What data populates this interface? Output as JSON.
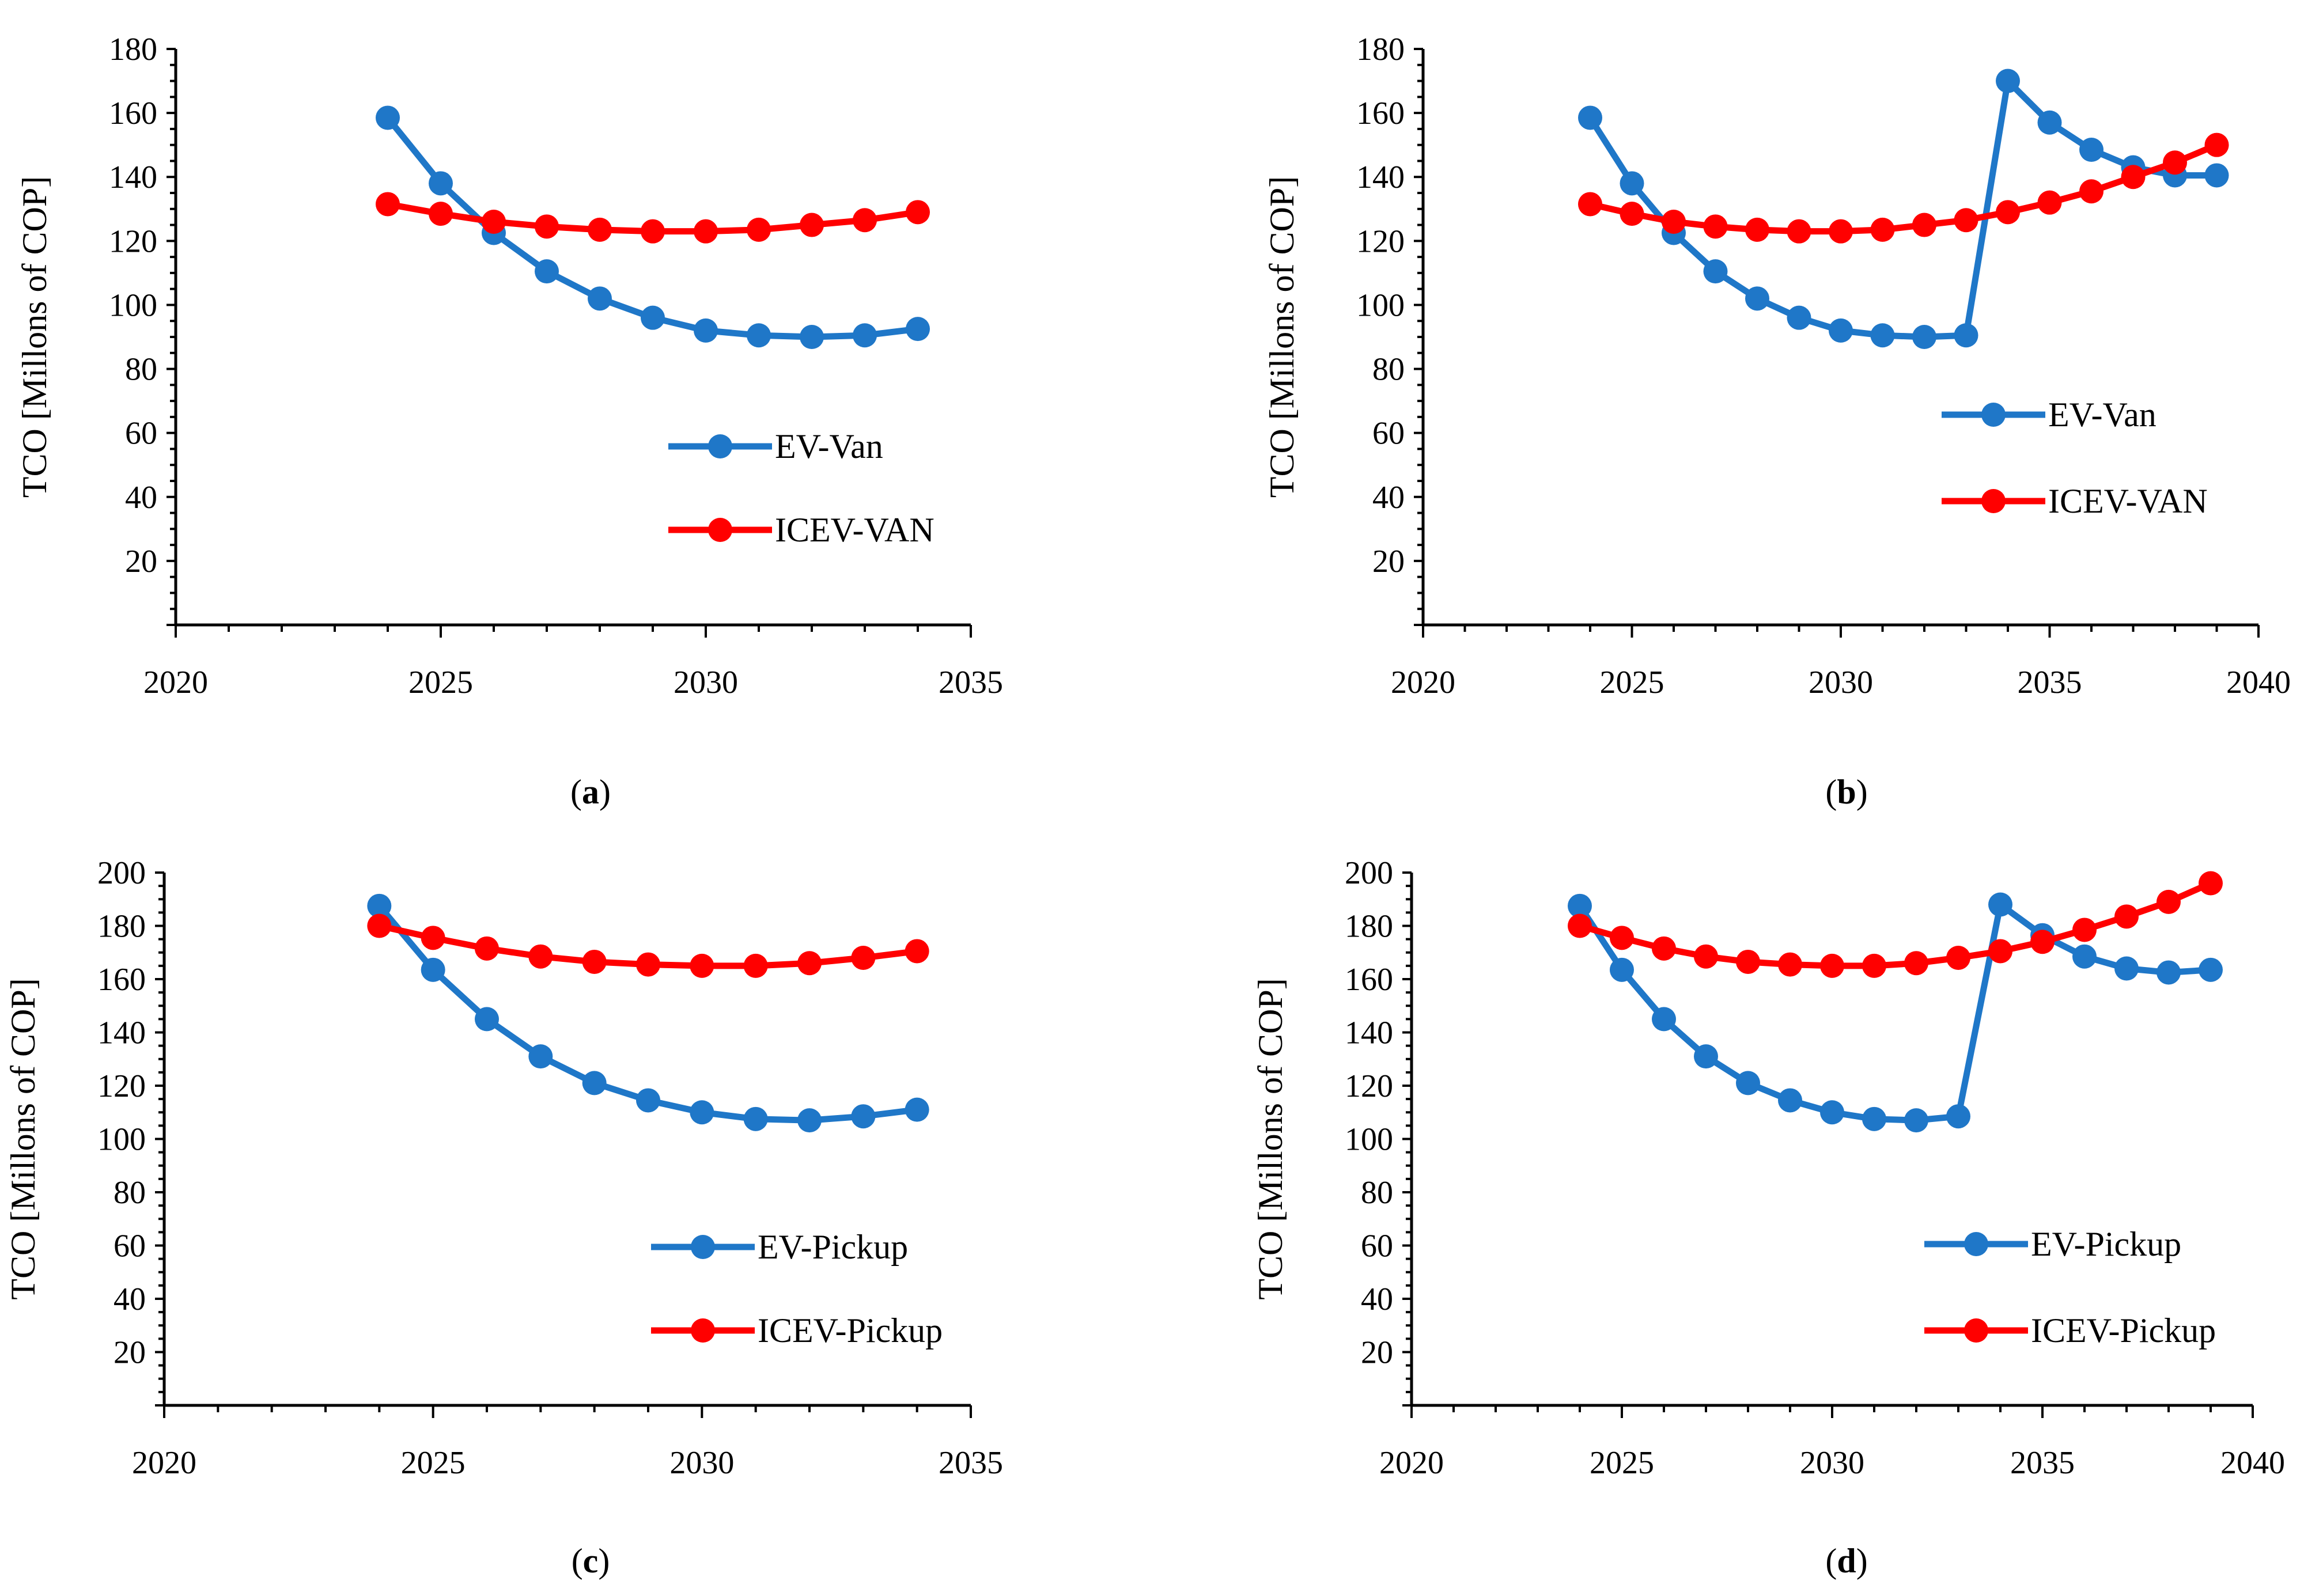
{
  "chart_data": [
    {
      "id": "a",
      "type": "line",
      "caption": "a",
      "title": "",
      "xlabel": "",
      "ylabel": "TCO [Millons of COP]",
      "xlim": [
        2020,
        2035
      ],
      "ylim": [
        0,
        180
      ],
      "xticks": [
        "2020",
        "2025",
        "2030",
        "2035"
      ],
      "yticks": [
        "20",
        "40",
        "60",
        "80",
        "100",
        "120",
        "140",
        "160",
        "180"
      ],
      "legend_position": "center-right",
      "x": [
        2024,
        2025,
        2026,
        2027,
        2028,
        2029,
        2030,
        2031,
        2032,
        2033,
        2034
      ],
      "series": [
        {
          "name": "EV-Van",
          "color": "#1f77c8",
          "values": [
            158.5,
            138,
            122.5,
            110.5,
            102,
            96,
            92,
            90.5,
            90,
            90.5,
            92.5
          ]
        },
        {
          "name": "ICEV-VAN",
          "color": "#ff0000",
          "values": [
            131.5,
            128.5,
            126,
            124.5,
            123.5,
            123,
            123,
            123.5,
            125,
            126.5,
            129
          ]
        }
      ]
    },
    {
      "id": "b",
      "type": "line",
      "caption": "b",
      "title": "",
      "xlabel": "",
      "ylabel": "TCO [Millons of COP]",
      "xlim": [
        2020,
        2040
      ],
      "ylim": [
        0,
        180
      ],
      "xticks": [
        "2020",
        "2025",
        "2030",
        "2035",
        "2040"
      ],
      "yticks": [
        "20",
        "40",
        "60",
        "80",
        "100",
        "120",
        "140",
        "160",
        "180"
      ],
      "legend_position": "center-right",
      "x": [
        2024,
        2025,
        2026,
        2027,
        2028,
        2029,
        2030,
        2031,
        2032,
        2033,
        2034,
        2035,
        2036,
        2037,
        2038,
        2039
      ],
      "series": [
        {
          "name": "EV-Van",
          "color": "#1f77c8",
          "values": [
            158.5,
            138,
            122.5,
            110.5,
            102,
            96,
            92,
            90.5,
            90,
            90.5,
            170,
            157,
            148.5,
            143,
            140.5,
            140.5
          ]
        },
        {
          "name": "ICEV-VAN",
          "color": "#ff0000",
          "values": [
            131.5,
            128.5,
            126,
            124.5,
            123.5,
            123,
            123,
            123.5,
            125,
            126.5,
            129,
            132,
            135.5,
            140,
            144.5,
            150
          ]
        }
      ]
    },
    {
      "id": "c",
      "type": "line",
      "caption": "c",
      "title": "",
      "xlabel": "",
      "ylabel": "TCO [Millons of COP]",
      "xlim": [
        2020,
        2035
      ],
      "ylim": [
        0,
        200
      ],
      "xticks": [
        "2020",
        "2025",
        "2030",
        "2035"
      ],
      "yticks": [
        "20",
        "40",
        "60",
        "80",
        "100",
        "120",
        "140",
        "160",
        "180",
        "200"
      ],
      "legend_position": "center-right",
      "x": [
        2024,
        2025,
        2026,
        2027,
        2028,
        2029,
        2030,
        2031,
        2032,
        2033,
        2034
      ],
      "series": [
        {
          "name": "EV-Pickup",
          "color": "#1f77c8",
          "values": [
            187.5,
            163.5,
            145,
            131,
            121,
            114.5,
            110,
            107.5,
            107,
            108.5,
            111
          ]
        },
        {
          "name": "ICEV-Pickup",
          "color": "#ff0000",
          "values": [
            180,
            175.5,
            171.5,
            168.5,
            166.5,
            165.5,
            165,
            165,
            166,
            168,
            170.5
          ]
        }
      ]
    },
    {
      "id": "d",
      "type": "line",
      "caption": "d",
      "title": "",
      "xlabel": "",
      "ylabel": "TCO [Millons of COP]",
      "xlim": [
        2020,
        2040
      ],
      "ylim": [
        0,
        200
      ],
      "xticks": [
        "2020",
        "2025",
        "2030",
        "2035",
        "2040"
      ],
      "yticks": [
        "20",
        "40",
        "60",
        "80",
        "100",
        "120",
        "140",
        "160",
        "180",
        "200"
      ],
      "legend_position": "center-right",
      "x": [
        2024,
        2025,
        2026,
        2027,
        2028,
        2029,
        2030,
        2031,
        2032,
        2033,
        2034,
        2035,
        2036,
        2037,
        2038,
        2039
      ],
      "series": [
        {
          "name": "EV-Pickup",
          "color": "#1f77c8",
          "values": [
            187.5,
            163.5,
            145,
            131,
            121,
            114.5,
            110,
            107.5,
            107,
            108.5,
            188,
            176.5,
            168.5,
            164,
            162.5,
            163.5
          ]
        },
        {
          "name": "ICEV-Pickup",
          "color": "#ff0000",
          "values": [
            180,
            175.5,
            171.5,
            168.5,
            166.5,
            165.5,
            165,
            165,
            166,
            168,
            170.5,
            174,
            178.5,
            183.5,
            189,
            196
          ]
        }
      ]
    }
  ]
}
